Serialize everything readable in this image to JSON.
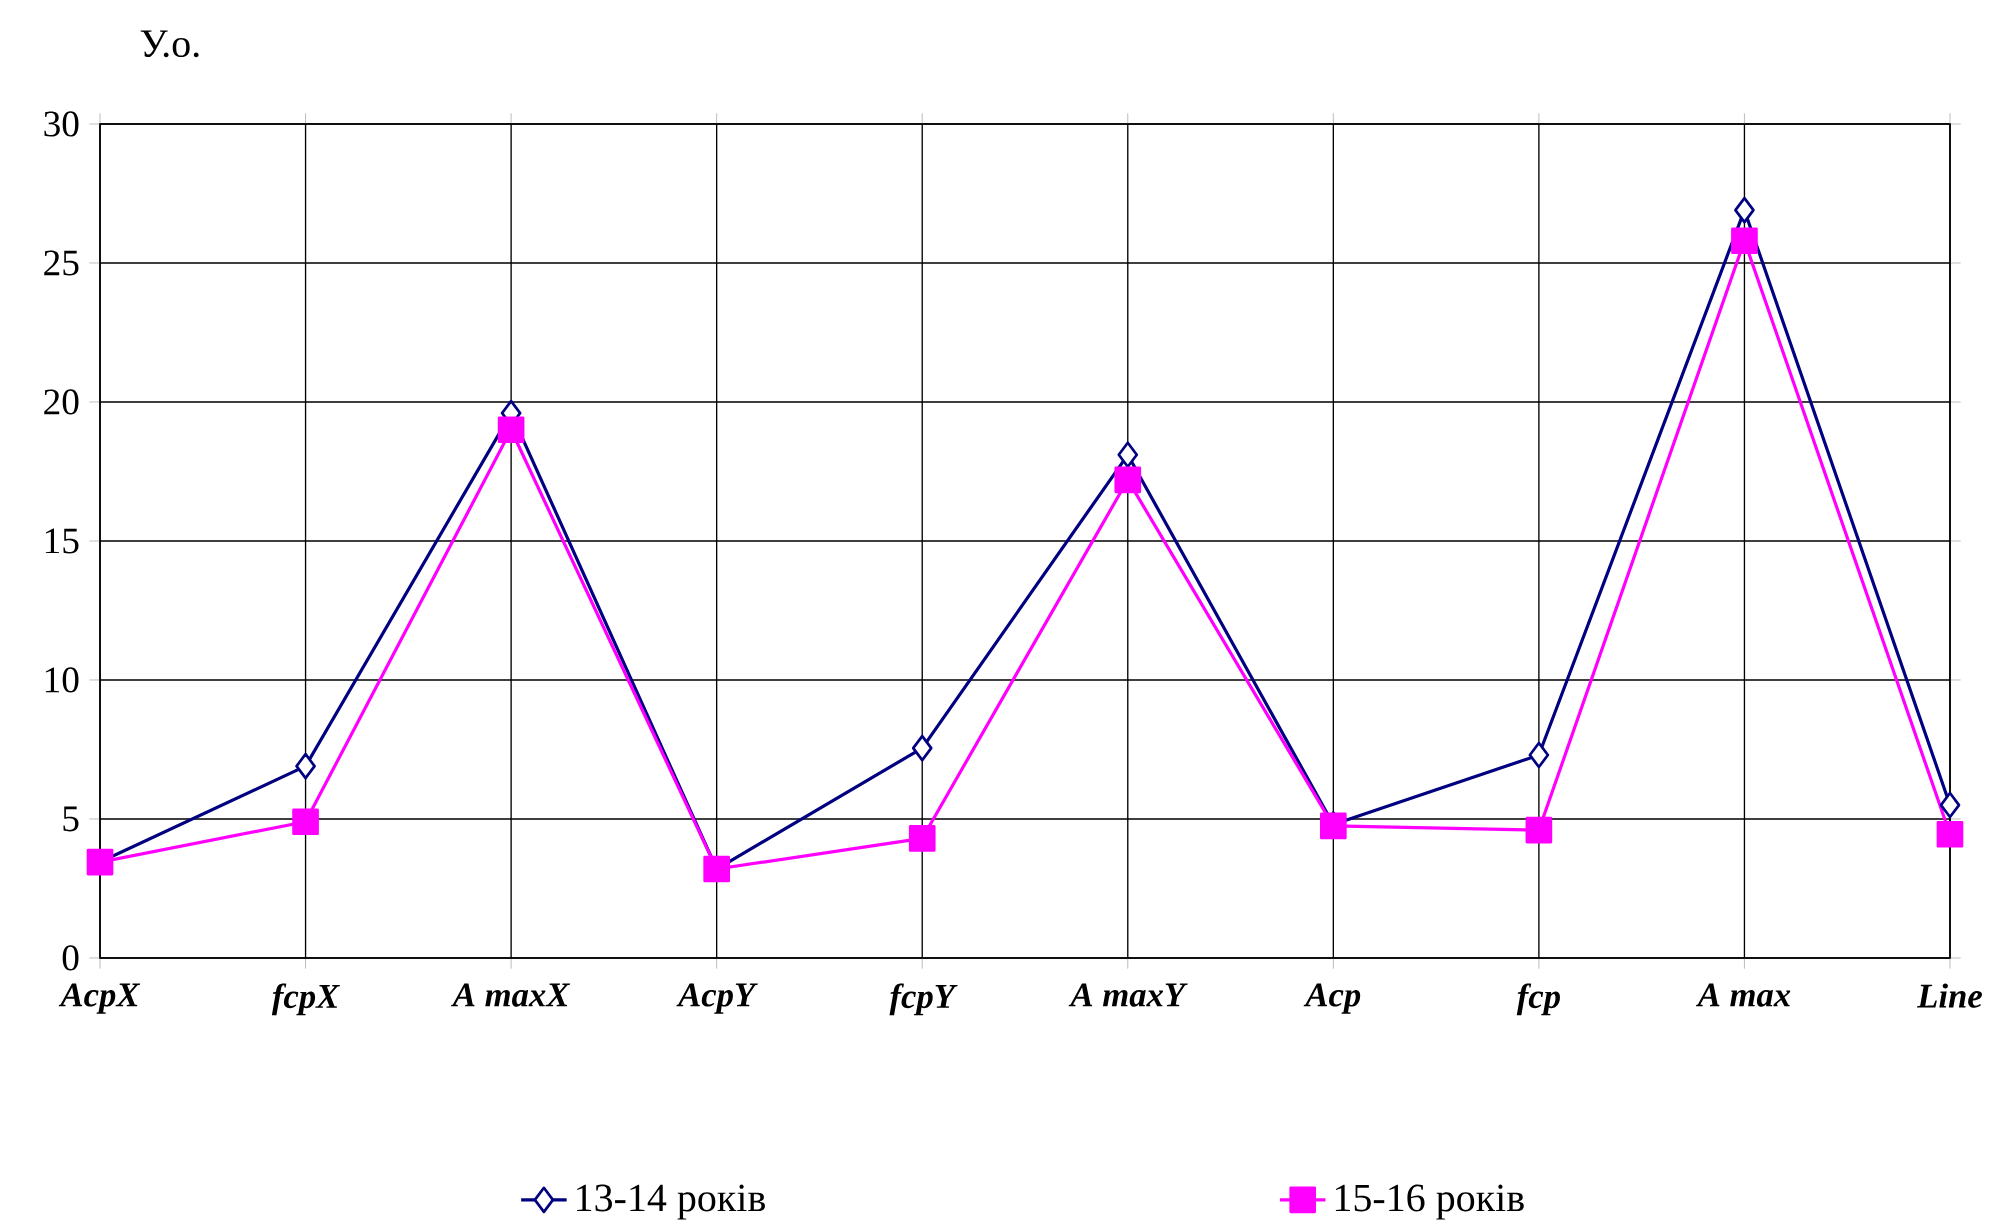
{
  "chart_data": {
    "type": "line",
    "ylabel": "У.о.",
    "categories": [
      "AcpX",
      "fcpX",
      "A maxX",
      "AcpY",
      "fcpY",
      "A maxY",
      "Acp",
      "fcp",
      "A max",
      "Line"
    ],
    "series": [
      {
        "name": "13-14 років",
        "color": "#000080",
        "marker": "diamond",
        "values": [
          3.45,
          6.9,
          19.6,
          3.2,
          7.55,
          18.1,
          4.8,
          7.3,
          26.9,
          5.5
        ]
      },
      {
        "name": "15-16 років",
        "color": "#ff00ff",
        "marker": "square",
        "values": [
          3.45,
          4.9,
          19.0,
          3.2,
          4.3,
          17.2,
          4.75,
          4.6,
          25.8,
          4.45
        ]
      }
    ],
    "ylim": [
      0,
      30
    ],
    "yticks": [
      0,
      5,
      10,
      15,
      20,
      25,
      30
    ],
    "grid": true,
    "legend": "bottom",
    "line_style": "solid"
  }
}
